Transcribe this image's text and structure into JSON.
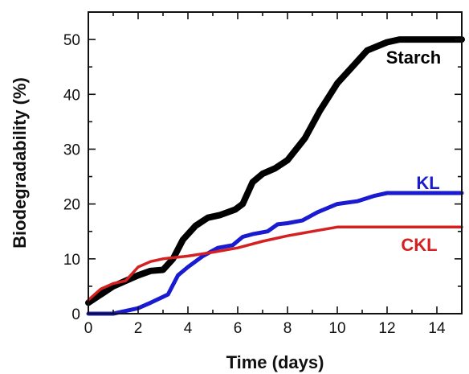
{
  "chart_data": {
    "type": "line",
    "xlabel": "Time (days)",
    "ylabel": "Biodegradability (%)",
    "xlim": [
      0,
      15
    ],
    "ylim": [
      0,
      55
    ],
    "xticks": [
      "0",
      "2",
      "4",
      "6",
      "8",
      "10",
      "12",
      "14"
    ],
    "yticks": [
      "0",
      "10",
      "20",
      "30",
      "40",
      "50"
    ],
    "grid": false,
    "series": [
      {
        "name": "Starch",
        "color": "#000000",
        "x": [
          0,
          1,
          2,
          2.5,
          3,
          3.4,
          3.8,
          4.3,
          4.8,
          5.3,
          5.9,
          6.2,
          6.6,
          7.0,
          7.5,
          8.0,
          8.7,
          9.3,
          10.0,
          10.6,
          11.2,
          12.0,
          12.5,
          13.5,
          15.0
        ],
        "y": [
          2,
          5,
          7,
          7.8,
          8,
          10,
          13.5,
          16,
          17.5,
          18,
          19,
          20,
          24,
          25.5,
          26.5,
          28,
          32,
          37,
          42,
          45,
          48,
          49.5,
          50,
          50,
          50
        ]
      },
      {
        "name": "KL",
        "color": "#1a1ad0",
        "x": [
          0,
          1,
          2,
          2.5,
          3.2,
          3.6,
          4.0,
          4.6,
          5.2,
          5.8,
          6.2,
          6.6,
          7.2,
          7.6,
          8.0,
          8.6,
          9.2,
          10.0,
          10.8,
          11.5,
          12.0,
          13.0,
          15.0
        ],
        "y": [
          0,
          0,
          1,
          2,
          3.5,
          7,
          8.5,
          10.5,
          12,
          12.5,
          14,
          14.5,
          15,
          16.3,
          16.5,
          17,
          18.5,
          20,
          20.5,
          21.5,
          22,
          22,
          22
        ]
      },
      {
        "name": "CKL",
        "color": "#d42020",
        "x": [
          0,
          0.5,
          1,
          1.5,
          2,
          2.5,
          3,
          4,
          5,
          6,
          7,
          8,
          9,
          10,
          11,
          12,
          13,
          14,
          15
        ],
        "y": [
          2.5,
          4.5,
          5.5,
          6,
          8.5,
          9.5,
          10,
          10.5,
          11.2,
          12,
          13.2,
          14.2,
          15,
          15.8,
          15.8,
          15.8,
          15.8,
          15.8,
          15.8
        ]
      }
    ],
    "annotations": [
      "Starch",
      "KL",
      "CKL"
    ]
  }
}
